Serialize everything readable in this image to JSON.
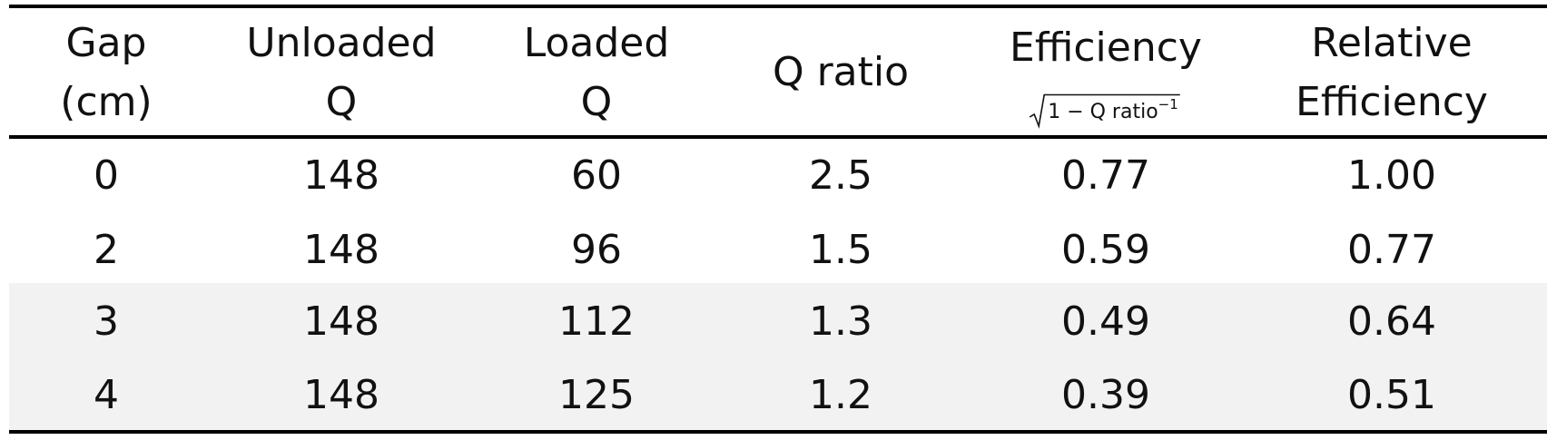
{
  "table": {
    "header": [
      {
        "lines": [
          "Gap",
          "(cm)"
        ]
      },
      {
        "lines": [
          "Unloaded",
          "Q"
        ]
      },
      {
        "lines": [
          "Loaded",
          "Q"
        ]
      },
      {
        "lines": [
          "Q ratio"
        ]
      },
      {
        "lines": [
          "Efficiency"
        ],
        "formula": {
          "radicand": "1 − Q ratio",
          "exponent": "−1"
        }
      },
      {
        "lines": [
          "Relative",
          "Efficiency"
        ]
      }
    ],
    "rows": [
      [
        "0",
        "148",
        "60",
        "2.5",
        "0.77",
        "1.00"
      ],
      [
        "2",
        "148",
        "96",
        "1.5",
        "0.59",
        "0.77"
      ],
      [
        "3",
        "148",
        "112",
        "1.3",
        "0.49",
        "0.64"
      ],
      [
        "4",
        "148",
        "125",
        "1.2",
        "0.39",
        "0.51"
      ]
    ]
  }
}
